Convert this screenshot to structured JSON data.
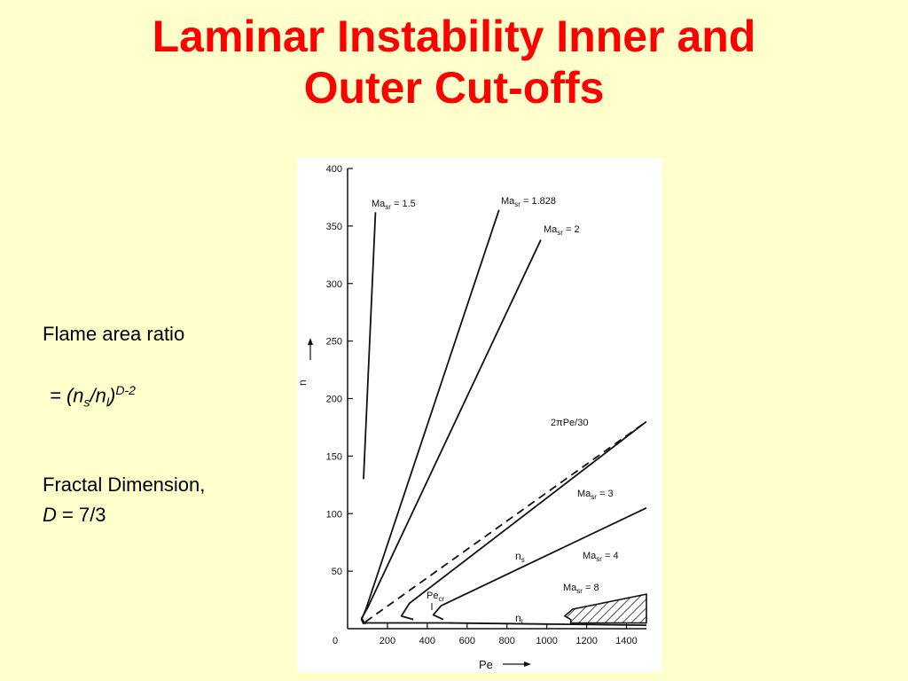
{
  "slide": {
    "title_line1": "Laminar Instability Inner and",
    "title_line2": "Outer Cut-offs"
  },
  "notes": {
    "flame_area_ratio": "Flame area ratio",
    "ratio_formula_prefix": "= (",
    "ratio_ns": "n",
    "ratio_ns_sub": "s",
    "ratio_slash": "/",
    "ratio_nl": "n",
    "ratio_nl_sub": "l",
    "ratio_close": ")",
    "ratio_exponent": "D-2",
    "fractal_dimension": "Fractal Dimension,",
    "d_symbol": "D",
    "d_value": " = 7/3"
  },
  "chart_data": {
    "type": "line",
    "xlabel": "Pe",
    "ylabel": "n",
    "xlim": [
      0,
      1500
    ],
    "ylim": [
      0,
      400
    ],
    "x_ticks": [
      0,
      200,
      400,
      600,
      800,
      1000,
      1200,
      1400
    ],
    "y_ticks": [
      50,
      100,
      150,
      200,
      250,
      300,
      350,
      400
    ],
    "series": [
      {
        "name": "Ma_sr = 1.5",
        "points": [
          [
            80,
            130
          ],
          [
            140,
            362
          ]
        ]
      },
      {
        "name": "Ma_sr = 1.828",
        "points": [
          [
            80,
            4
          ],
          [
            70,
            8
          ],
          [
            90,
            16
          ],
          [
            760,
            364
          ]
        ]
      },
      {
        "name": "Ma_sr = 2",
        "points": [
          [
            90,
            4
          ],
          [
            70,
            9
          ],
          [
            100,
            18
          ],
          [
            970,
            338
          ]
        ]
      },
      {
        "name": "2πPe/30",
        "style": "dashed",
        "points": [
          [
            90,
            6
          ],
          [
            1500,
            180
          ]
        ]
      },
      {
        "name": "Ma_sr = 3",
        "points": [
          [
            330,
            8
          ],
          [
            270,
            11
          ],
          [
            310,
            22
          ],
          [
            1500,
            180
          ]
        ]
      },
      {
        "name": "Ma_sr = 4",
        "points": [
          [
            480,
            8
          ],
          [
            430,
            12
          ],
          [
            470,
            20
          ],
          [
            1500,
            105
          ]
        ]
      },
      {
        "name": "Ma_sr = 8",
        "style": "hatched-region",
        "points": [
          [
            1120,
            8
          ],
          [
            1090,
            11
          ],
          [
            1130,
            17
          ],
          [
            1500,
            30
          ]
        ]
      },
      {
        "name": "n_L",
        "points": [
          [
            80,
            5
          ],
          [
            200,
            5
          ],
          [
            500,
            5
          ],
          [
            1000,
            4
          ],
          [
            1500,
            3
          ]
        ]
      }
    ],
    "annotations": {
      "ma15_main": "Ma",
      "ma15_sub": "sr",
      "ma15_val": " = 1.5",
      "ma1828_main": "Ma",
      "ma1828_sub": "sr",
      "ma1828_val": " = 1.828",
      "ma2_main": "Ma",
      "ma2_sub": "sr",
      "ma2_val": " = 2",
      "pe30": "2πPe/30",
      "ma3_main": "Ma",
      "ma3_sub": "sr",
      "ma3_val": " = 3",
      "ma4_main": "Ma",
      "ma4_sub": "sr",
      "ma4_val": " = 4",
      "ma8_main": "Ma",
      "ma8_sub": "sr",
      "ma8_val": " = 8",
      "ns_main": "n",
      "ns_sub": "s",
      "nl_main": "n",
      "nl_sub": "L",
      "pecr_main": "Pe",
      "pecr_sub": "cr"
    }
  }
}
